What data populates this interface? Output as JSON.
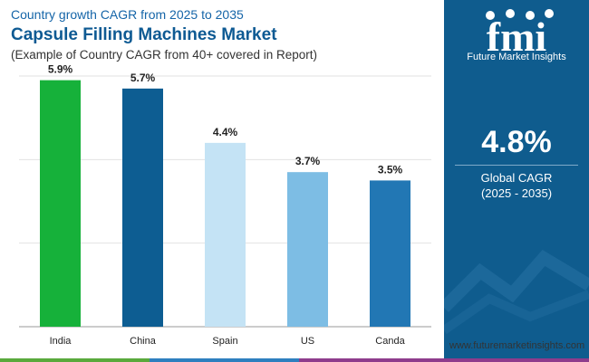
{
  "header": {
    "sup": "Country growth CAGR from 2025 to 2035",
    "title": "Capsule Filling Machines Market",
    "subtitle": "(Example of Country CAGR from 40+ covered in Report)"
  },
  "panel": {
    "logo_text": "fmi",
    "brand": "Future Market Insights",
    "cagr_value": "4.8%",
    "cagr_label": "Global CAGR",
    "cagr_period": "(2025 - 2035)"
  },
  "footer": {
    "url": "www.futuremarketinsights.com"
  },
  "colors": {
    "panel_bg": "#0f5c8e",
    "title": "#0e5a93",
    "stripe": [
      "#5aa93c",
      "#2e7fbf",
      "#8e3c8c"
    ]
  },
  "chart_data": {
    "type": "bar",
    "categories": [
      "India",
      "China",
      "Spain",
      "US",
      "Canda"
    ],
    "values": [
      5.9,
      5.7,
      4.4,
      3.7,
      3.5
    ],
    "value_labels": [
      "5.9%",
      "5.7%",
      "4.4%",
      "3.7%",
      "3.5%"
    ],
    "colors": [
      "#16b13a",
      "#0d5d92",
      "#c4e3f5",
      "#7dbde4",
      "#2277b4"
    ],
    "ylim": [
      0,
      6
    ],
    "grid": true,
    "title": "",
    "xlabel": "",
    "ylabel": ""
  }
}
